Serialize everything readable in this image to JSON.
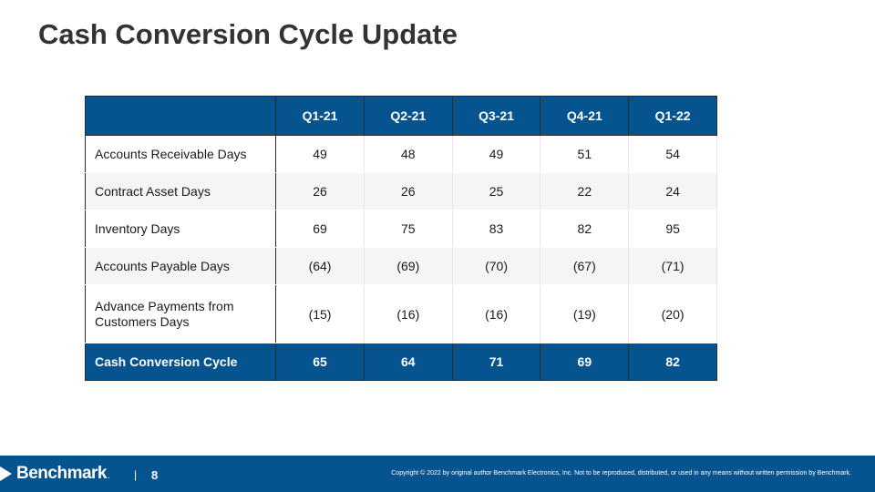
{
  "title": "Cash Conversion Cycle Update",
  "table": {
    "columns": [
      "",
      "Q1-21",
      "Q2-21",
      "Q3-21",
      "Q4-21",
      "Q1-22"
    ],
    "rows": [
      {
        "label": "Accounts Receivable Days",
        "values": [
          "49",
          "48",
          "49",
          "51",
          "54"
        ]
      },
      {
        "label": "Contract Asset Days",
        "values": [
          "26",
          "26",
          "25",
          "22",
          "24"
        ]
      },
      {
        "label": "Inventory Days",
        "values": [
          "69",
          "75",
          "83",
          "82",
          "95"
        ]
      },
      {
        "label": "Accounts Payable Days",
        "values": [
          "(64)",
          "(69)",
          "(70)",
          "(67)",
          "(71)"
        ]
      },
      {
        "label": "Advance Payments from Customers Days",
        "values": [
          "(15)",
          "(16)",
          "(16)",
          "(19)",
          "(20)"
        ]
      }
    ],
    "total": {
      "label": "Cash Conversion Cycle",
      "values": [
        "65",
        "64",
        "71",
        "69",
        "82"
      ]
    }
  },
  "footer": {
    "logo_text": "Benchmark",
    "logo_dot": ".",
    "separator": "|",
    "page_number": "8",
    "copyright": "Copyright © 2022 by original author Benchmark Electronics, Inc. Not to be reproduced, distributed, or used in any means without written permission by Benchmark."
  },
  "colors": {
    "brand_blue": "#06548f",
    "title": "#333333",
    "row_alt": "#f5f5f5"
  }
}
